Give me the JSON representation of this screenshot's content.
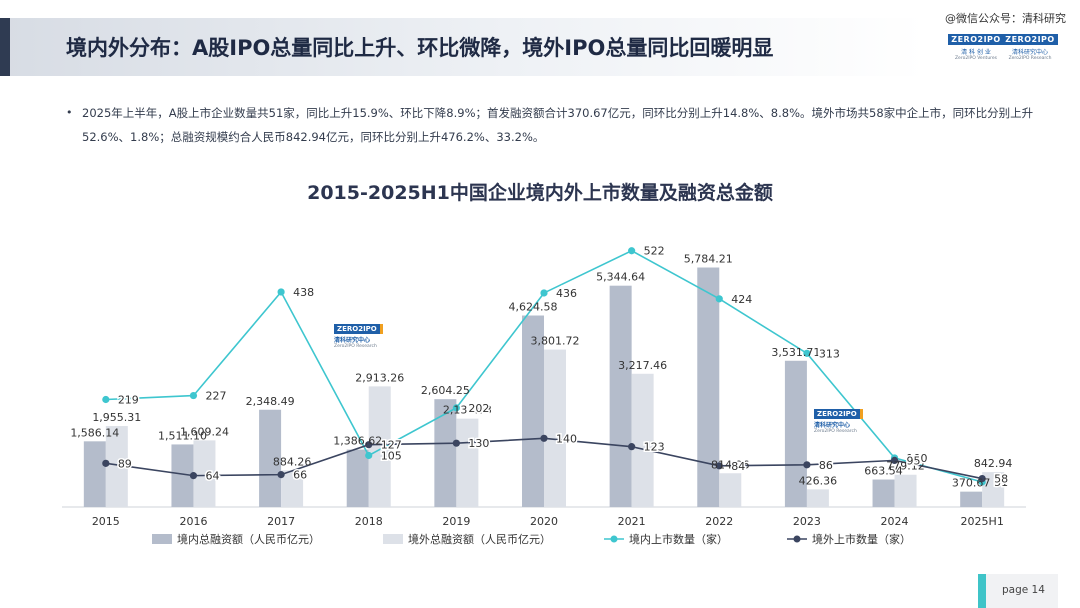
{
  "header": {
    "title": "境内外分布：A股IPO总量同比上升、环比微降，境外IPO总量同比回暖明显",
    "watermark": "@微信公众号：清科研究"
  },
  "logos": [
    {
      "box": "ZERO2IPO",
      "sub": "清 科 创 业",
      "sub2": "Zero2IPO Ventures"
    },
    {
      "box": "ZERO2IPO",
      "sub": "清科研究中心",
      "sub2": "Zero2IPO Research"
    }
  ],
  "chart_watermark": {
    "box": "ZERO2IPO",
    "sub": "清科研究中心",
    "sub2": "Zero2IPO Research"
  },
  "summary": {
    "bullet": "•",
    "text": "2025年上半年，A股上市企业数量共51家，同比上升15.9%、环比下降8.9%；首发融资额合计370.67亿元，同环比分别上升14.8%、8.8%。境外市场共58家中企上市，同环比分别上升52.6%、1.8%；总融资规模约合人民币842.94亿元，同环比分别上升476.2%、33.2%。"
  },
  "footer": {
    "page_label": "page  14"
  },
  "colors": {
    "domestic_bar": "#b4bccb",
    "overseas_bar": "#dde1e8",
    "domestic_line": "#3ec6cf",
    "overseas_line": "#3b4560"
  },
  "chart_data": {
    "type": "bar",
    "title": "2015-2025H1中国企业境内外上市数量及融资总金额",
    "categories": [
      "2015",
      "2016",
      "2017",
      "2018",
      "2019",
      "2020",
      "2021",
      "2022",
      "2023",
      "2024",
      "2025H1"
    ],
    "bar_series": [
      {
        "name": "境内总融资额（人民币亿元）",
        "values": [
          1586.14,
          1511.1,
          2348.49,
          1386.62,
          2604.25,
          4624.58,
          5344.64,
          5784.21,
          3531.71,
          663.54,
          370.67
        ],
        "labels": [
          "1,586.14",
          "1,511.10",
          "2,348.49",
          "1,386.62",
          "2,604.25",
          "4,624.58",
          "5,344.64",
          "5,784.21",
          "3,531.71",
          "663.54",
          "370.67"
        ]
      },
      {
        "name": "境外总融资额（人民币亿元）",
        "values": [
          1955.31,
          1609.24,
          884.26,
          2913.26,
          2133.63,
          3801.72,
          3217.46,
          814.96,
          426.36,
          779.12,
          842.94
        ],
        "labels": [
          "1,955.31",
          "1,609.24",
          "884.26",
          "2,913.26",
          "2,133.63",
          "3,801.72",
          "3,217.46",
          "814.96",
          "426.36",
          "779.12",
          "842.94"
        ]
      }
    ],
    "line_series": [
      {
        "name": "境内上市数量（家）",
        "values": [
          219,
          227,
          438,
          105,
          202,
          436,
          522,
          424,
          313,
          100,
          51
        ]
      },
      {
        "name": "境外上市数量（家）",
        "values": [
          89,
          64,
          66,
          127,
          130,
          140,
          123,
          84,
          86,
          95,
          58
        ]
      }
    ],
    "legend_position": "bottom",
    "grid": false
  }
}
